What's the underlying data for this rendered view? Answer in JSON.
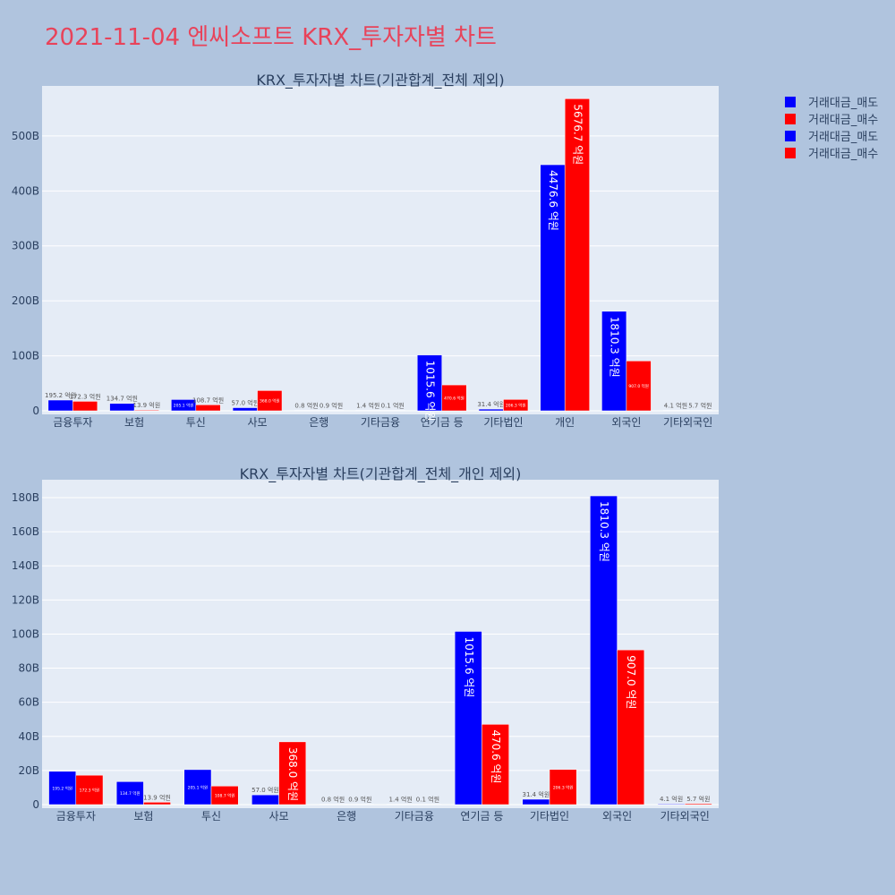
{
  "title": "2021-11-04 엔씨소프트 KRX_투자자별 차트",
  "legend": [
    {
      "label": "거래대금_매도",
      "color": "#0000ff"
    },
    {
      "label": "거래대금_매수",
      "color": "#ff0000"
    },
    {
      "label": "거래대금_매도",
      "color": "#0000ff"
    },
    {
      "label": "거래대금_매수",
      "color": "#ff0000"
    }
  ],
  "colors": {
    "sell": "#0000ff",
    "buy": "#ff0000",
    "plot_bg": "#e5ecf6",
    "page_bg": "#b0c4de",
    "title": "#e8435a"
  },
  "chart_data": [
    {
      "type": "bar",
      "title": "KRX_투자자별 차트(기관합계_전체 제외)",
      "categories": [
        "금융투자",
        "보험",
        "투신",
        "사모",
        "은행",
        "기타금융",
        "연기금 등",
        "기타법인",
        "개인",
        "외국인",
        "기타외국인"
      ],
      "yticks": [
        0,
        100,
        200,
        300,
        400,
        500
      ],
      "ytick_labels": [
        "0",
        "100B",
        "200B",
        "300B",
        "400B",
        "500B"
      ],
      "ylim": [
        0,
        591
      ],
      "grid": true,
      "series": [
        {
          "name": "거래대금_매도",
          "color": "#0000ff",
          "values": [
            19.52,
            13.47,
            20.51,
            5.7,
            0.08,
            0.14,
            101.56,
            3.14,
            447.66,
            181.03,
            0.41
          ],
          "labels": [
            "195.2 억원",
            "134.7 억원",
            "205.1 억원",
            "57.0 억원",
            "0.8 억원",
            "1.4 억원",
            "1015.6 억원",
            "31.4 억원",
            "4476.6 억원",
            "1810.3 억원",
            "4.1 억원"
          ]
        },
        {
          "name": "거래대금_매수",
          "color": "#ff0000",
          "values": [
            17.23,
            1.39,
            10.87,
            36.8,
            0.09,
            0.01,
            47.06,
            20.63,
            567.67,
            90.7,
            0.57
          ],
          "labels": [
            "172.3 억원",
            "13.9 억원",
            "108.7 억원",
            "368.0 억원",
            "0.9 억원",
            "0.1 억원",
            "470.6 억원",
            "206.3 억원",
            "5676.7 억원",
            "907.0 억원",
            "5.7 억원"
          ]
        }
      ]
    },
    {
      "type": "bar",
      "title": "KRX_투자자별 차트(기관합계_전체_개인 제외)",
      "categories": [
        "금융투자",
        "보험",
        "투신",
        "사모",
        "은행",
        "기타금융",
        "연기금 등",
        "기타법인",
        "외국인",
        "기타외국인"
      ],
      "yticks": [
        0,
        20,
        40,
        60,
        80,
        100,
        120,
        140,
        160,
        180
      ],
      "ytick_labels": [
        "0",
        "20B",
        "40B",
        "60B",
        "80B",
        "100B",
        "120B",
        "140B",
        "160B",
        "180B"
      ],
      "ylim": [
        0,
        190.5
      ],
      "grid": true,
      "series": [
        {
          "name": "거래대금_매도",
          "color": "#0000ff",
          "values": [
            19.52,
            13.47,
            20.51,
            5.7,
            0.08,
            0.14,
            101.56,
            3.14,
            181.03,
            0.41
          ],
          "labels": [
            "195.2 억원",
            "134.7 억원",
            "205.1 억원",
            "57.0 억원",
            "0.8 억원",
            "1.4 억원",
            "1015.6 억원",
            "31.4 억원",
            "1810.3 억원",
            "4.1 억원"
          ]
        },
        {
          "name": "거래대금_매수",
          "color": "#ff0000",
          "values": [
            17.23,
            1.39,
            10.87,
            36.8,
            0.09,
            0.01,
            47.06,
            20.63,
            90.7,
            0.57
          ],
          "labels": [
            "172.3 억원",
            "13.9 억원",
            "108.7 억원",
            "368.0 억원",
            "0.9 억원",
            "0.1 억원",
            "470.6 억원",
            "206.3 억원",
            "907.0 억원",
            "5.7 억원"
          ]
        }
      ]
    }
  ]
}
